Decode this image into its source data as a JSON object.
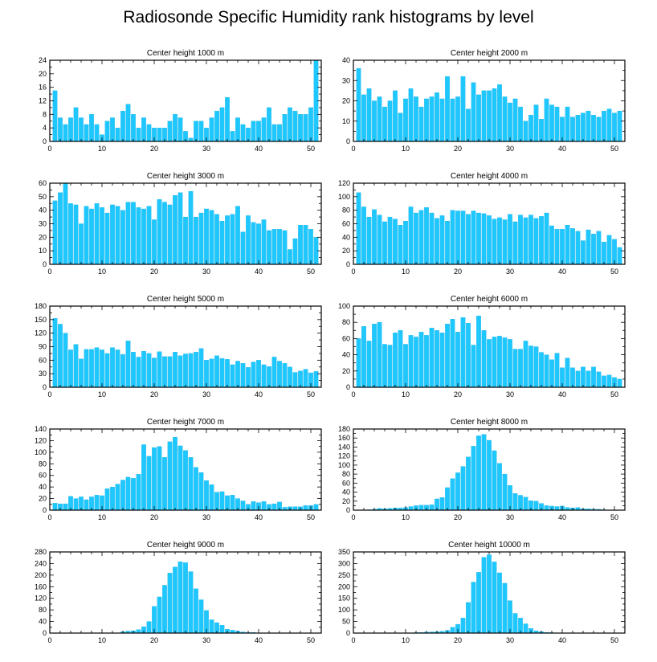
{
  "chart_data": {
    "title": "Radiosonde Specific Humidity rank histograms by level",
    "colors": {
      "bar": "#1ec8ff",
      "bar_stroke": "#0aa8e0",
      "axis": "#000000"
    },
    "panels": [
      {
        "type": "bar",
        "title": "Center height 1000 m",
        "xlim": [
          0,
          52
        ],
        "ylim": [
          0,
          24
        ],
        "xticks": [
          0,
          10,
          20,
          30,
          40,
          50
        ],
        "yticks": [
          0,
          4,
          8,
          12,
          16,
          20,
          24
        ],
        "categories": [
          1,
          2,
          3,
          4,
          5,
          6,
          7,
          8,
          9,
          10,
          11,
          12,
          13,
          14,
          15,
          16,
          17,
          18,
          19,
          20,
          21,
          22,
          23,
          24,
          25,
          26,
          27,
          28,
          29,
          30,
          31,
          32,
          33,
          34,
          35,
          36,
          37,
          38,
          39,
          40,
          41,
          42,
          43,
          44,
          45,
          46,
          47,
          48,
          49,
          50,
          51
        ],
        "values": [
          15,
          7,
          5,
          7,
          10,
          7,
          5,
          8,
          5,
          2,
          6,
          7,
          4,
          9,
          11,
          8,
          4,
          7,
          5,
          4,
          4,
          4,
          6,
          8,
          7,
          3,
          1,
          6,
          6,
          4,
          7,
          9,
          10,
          13,
          3,
          7,
          5,
          4,
          6,
          6,
          7,
          10,
          5,
          5,
          8,
          10,
          9,
          8,
          8,
          10,
          24
        ]
      },
      {
        "type": "bar",
        "title": "Center height 2000 m",
        "xlim": [
          0,
          52
        ],
        "ylim": [
          0,
          40
        ],
        "xticks": [
          0,
          10,
          20,
          30,
          40,
          50
        ],
        "yticks": [
          0,
          10,
          20,
          30,
          40
        ],
        "categories": [
          1,
          2,
          3,
          4,
          5,
          6,
          7,
          8,
          9,
          10,
          11,
          12,
          13,
          14,
          15,
          16,
          17,
          18,
          19,
          20,
          21,
          22,
          23,
          24,
          25,
          26,
          27,
          28,
          29,
          30,
          31,
          32,
          33,
          34,
          35,
          36,
          37,
          38,
          39,
          40,
          41,
          42,
          43,
          44,
          45,
          46,
          47,
          48,
          49,
          50,
          51
        ],
        "values": [
          36,
          23,
          26,
          20,
          22,
          17,
          20,
          25,
          14,
          21,
          26,
          22,
          17,
          21,
          22,
          24,
          21,
          32,
          21,
          22,
          32,
          16,
          29,
          23,
          25,
          25,
          26,
          28,
          22,
          19,
          21,
          17,
          10,
          13,
          18,
          11,
          21,
          18,
          17,
          12,
          17,
          12,
          13,
          14,
          15,
          13,
          12,
          15,
          16,
          14,
          15
        ]
      },
      {
        "type": "bar",
        "title": "Center height 3000 m",
        "xlim": [
          0,
          52
        ],
        "ylim": [
          0,
          60
        ],
        "xticks": [
          0,
          10,
          20,
          30,
          40,
          50
        ],
        "yticks": [
          0,
          10,
          20,
          30,
          40,
          50,
          60
        ],
        "categories": [
          1,
          2,
          3,
          4,
          5,
          6,
          7,
          8,
          9,
          10,
          11,
          12,
          13,
          14,
          15,
          16,
          17,
          18,
          19,
          20,
          21,
          22,
          23,
          24,
          25,
          26,
          27,
          28,
          29,
          30,
          31,
          32,
          33,
          34,
          35,
          36,
          37,
          38,
          39,
          40,
          41,
          42,
          43,
          44,
          45,
          46,
          47,
          48,
          49,
          50,
          51
        ],
        "values": [
          47,
          53,
          60,
          45,
          44,
          30,
          43,
          41,
          45,
          42,
          38,
          44,
          43,
          40,
          46,
          46,
          42,
          41,
          43,
          33,
          48,
          46,
          44,
          51,
          53,
          35,
          54,
          35,
          38,
          41,
          40,
          37,
          32,
          36,
          37,
          43,
          24,
          36,
          31,
          30,
          33,
          25,
          26,
          26,
          25,
          11,
          19,
          29,
          29,
          26,
          20
        ]
      },
      {
        "type": "bar",
        "title": "Center height 4000 m",
        "xlim": [
          0,
          52
        ],
        "ylim": [
          0,
          120
        ],
        "xticks": [
          0,
          10,
          20,
          30,
          40,
          50
        ],
        "yticks": [
          0,
          20,
          40,
          60,
          80,
          100,
          120
        ],
        "categories": [
          1,
          2,
          3,
          4,
          5,
          6,
          7,
          8,
          9,
          10,
          11,
          12,
          13,
          14,
          15,
          16,
          17,
          18,
          19,
          20,
          21,
          22,
          23,
          24,
          25,
          26,
          27,
          28,
          29,
          30,
          31,
          32,
          33,
          34,
          35,
          36,
          37,
          38,
          39,
          40,
          41,
          42,
          43,
          44,
          45,
          46,
          47,
          48,
          49,
          50,
          51
        ],
        "values": [
          106,
          85,
          70,
          81,
          73,
          63,
          70,
          67,
          58,
          64,
          85,
          76,
          80,
          84,
          76,
          68,
          72,
          64,
          80,
          79,
          79,
          74,
          79,
          76,
          75,
          72,
          67,
          69,
          66,
          74,
          63,
          73,
          69,
          73,
          68,
          71,
          76,
          57,
          52,
          52,
          58,
          53,
          49,
          35,
          51,
          45,
          49,
          33,
          43,
          37,
          25
        ]
      },
      {
        "type": "bar",
        "title": "Center height 5000 m",
        "xlim": [
          0,
          52
        ],
        "ylim": [
          0,
          180
        ],
        "xticks": [
          0,
          10,
          20,
          30,
          40,
          50
        ],
        "yticks": [
          0,
          30,
          60,
          90,
          120,
          150,
          180
        ],
        "categories": [
          1,
          2,
          3,
          4,
          5,
          6,
          7,
          8,
          9,
          10,
          11,
          12,
          13,
          14,
          15,
          16,
          17,
          18,
          19,
          20,
          21,
          22,
          23,
          24,
          25,
          26,
          27,
          28,
          29,
          30,
          31,
          32,
          33,
          34,
          35,
          36,
          37,
          38,
          39,
          40,
          41,
          42,
          43,
          44,
          45,
          46,
          47,
          48,
          49,
          50,
          51
        ],
        "values": [
          153,
          140,
          120,
          83,
          95,
          63,
          84,
          84,
          88,
          83,
          75,
          88,
          83,
          73,
          103,
          78,
          67,
          80,
          75,
          65,
          79,
          68,
          68,
          78,
          70,
          74,
          75,
          78,
          86,
          60,
          63,
          70,
          64,
          62,
          50,
          58,
          53,
          44,
          56,
          60,
          50,
          46,
          67,
          58,
          53,
          45,
          33,
          36,
          40,
          32,
          35
        ]
      },
      {
        "type": "bar",
        "title": "Center height 6000 m",
        "xlim": [
          0,
          52
        ],
        "ylim": [
          0,
          100
        ],
        "xticks": [
          0,
          10,
          20,
          30,
          40,
          50
        ],
        "yticks": [
          0,
          20,
          40,
          60,
          80,
          100
        ],
        "categories": [
          1,
          2,
          3,
          4,
          5,
          6,
          7,
          8,
          9,
          10,
          11,
          12,
          13,
          14,
          15,
          16,
          17,
          18,
          19,
          20,
          21,
          22,
          23,
          24,
          25,
          26,
          27,
          28,
          29,
          30,
          31,
          32,
          33,
          34,
          35,
          36,
          37,
          38,
          39,
          40,
          41,
          42,
          43,
          44,
          45,
          46,
          47,
          48,
          49,
          50,
          51
        ],
        "values": [
          60,
          75,
          57,
          78,
          80,
          53,
          52,
          67,
          70,
          53,
          64,
          62,
          68,
          64,
          73,
          70,
          67,
          78,
          84,
          68,
          86,
          79,
          52,
          88,
          70,
          59,
          62,
          63,
          61,
          59,
          47,
          47,
          57,
          51,
          50,
          43,
          40,
          34,
          42,
          24,
          36,
          24,
          20,
          25,
          20,
          25,
          19,
          14,
          15,
          12,
          10
        ]
      },
      {
        "type": "bar",
        "title": "Center height 7000 m",
        "xlim": [
          0,
          52
        ],
        "ylim": [
          0,
          140
        ],
        "xticks": [
          0,
          10,
          20,
          30,
          40,
          50
        ],
        "yticks": [
          0,
          20,
          40,
          60,
          80,
          100,
          120,
          140
        ],
        "categories": [
          1,
          2,
          3,
          4,
          5,
          6,
          7,
          8,
          9,
          10,
          11,
          12,
          13,
          14,
          15,
          16,
          17,
          18,
          19,
          20,
          21,
          22,
          23,
          24,
          25,
          26,
          27,
          28,
          29,
          30,
          31,
          32,
          33,
          34,
          35,
          36,
          37,
          38,
          39,
          40,
          41,
          42,
          43,
          44,
          45,
          46,
          47,
          48,
          49,
          50,
          51
        ],
        "values": [
          12,
          11,
          11,
          24,
          20,
          23,
          18,
          23,
          26,
          25,
          37,
          40,
          45,
          52,
          57,
          55,
          62,
          113,
          93,
          108,
          110,
          91,
          118,
          126,
          111,
          103,
          91,
          74,
          65,
          51,
          44,
          31,
          32,
          25,
          26,
          20,
          16,
          10,
          15,
          13,
          15,
          10,
          11,
          14,
          5,
          6,
          6,
          6,
          8,
          8,
          10
        ]
      },
      {
        "type": "bar",
        "title": "Center height 8000 m",
        "xlim": [
          0,
          52
        ],
        "ylim": [
          0,
          180
        ],
        "xticks": [
          0,
          10,
          20,
          30,
          40,
          50
        ],
        "yticks": [
          0,
          20,
          40,
          60,
          80,
          100,
          120,
          140,
          160,
          180
        ],
        "categories": [
          1,
          2,
          3,
          4,
          5,
          6,
          7,
          8,
          9,
          10,
          11,
          12,
          13,
          14,
          15,
          16,
          17,
          18,
          19,
          20,
          21,
          22,
          23,
          24,
          25,
          26,
          27,
          28,
          29,
          30,
          31,
          32,
          33,
          34,
          35,
          36,
          37,
          38,
          39,
          40,
          41,
          42,
          43,
          44,
          45,
          46,
          47,
          48,
          49,
          50,
          51
        ],
        "values": [
          0,
          0,
          1,
          2,
          4,
          3,
          4,
          5,
          5,
          6,
          8,
          10,
          11,
          11,
          12,
          25,
          28,
          50,
          70,
          83,
          97,
          118,
          142,
          165,
          168,
          155,
          132,
          104,
          80,
          55,
          37,
          33,
          29,
          21,
          20,
          15,
          10,
          9,
          8,
          9,
          6,
          5,
          6,
          3,
          3,
          2,
          2,
          1,
          0,
          0,
          0
        ]
      },
      {
        "type": "bar",
        "title": "Center height 9000 m",
        "xlim": [
          0,
          52
        ],
        "ylim": [
          0,
          280
        ],
        "xticks": [
          0,
          10,
          20,
          30,
          40,
          50
        ],
        "yticks": [
          0,
          40,
          80,
          120,
          160,
          200,
          240,
          280
        ],
        "categories": [
          1,
          2,
          3,
          4,
          5,
          6,
          7,
          8,
          9,
          10,
          11,
          12,
          13,
          14,
          15,
          16,
          17,
          18,
          19,
          20,
          21,
          22,
          23,
          24,
          25,
          26,
          27,
          28,
          29,
          30,
          31,
          32,
          33,
          34,
          35,
          36,
          37,
          38,
          39,
          40,
          41,
          42,
          43,
          44,
          45,
          46,
          47,
          48,
          49,
          50,
          51
        ],
        "values": [
          0,
          0,
          0,
          0,
          0,
          0,
          0,
          0,
          0,
          0,
          0,
          0,
          0,
          5,
          7,
          8,
          12,
          22,
          40,
          92,
          125,
          165,
          207,
          228,
          246,
          243,
          212,
          153,
          115,
          78,
          46,
          36,
          27,
          13,
          10,
          7,
          4,
          2,
          2,
          1,
          0,
          0,
          0,
          0,
          0,
          0,
          0,
          0,
          0,
          0,
          0
        ]
      },
      {
        "type": "bar",
        "title": "Center height 10000 m",
        "xlim": [
          0,
          52
        ],
        "ylim": [
          0,
          350
        ],
        "xticks": [
          0,
          10,
          20,
          30,
          40,
          50
        ],
        "yticks": [
          0,
          50,
          100,
          150,
          200,
          250,
          300,
          350
        ],
        "categories": [
          1,
          2,
          3,
          4,
          5,
          6,
          7,
          8,
          9,
          10,
          11,
          12,
          13,
          14,
          15,
          16,
          17,
          18,
          19,
          20,
          21,
          22,
          23,
          24,
          25,
          26,
          27,
          28,
          29,
          30,
          31,
          32,
          33,
          34,
          35,
          36,
          37,
          38,
          39,
          40,
          41,
          42,
          43,
          44,
          45,
          46,
          47,
          48,
          49,
          50,
          51
        ],
        "values": [
          0,
          0,
          0,
          0,
          0,
          0,
          0,
          0,
          0,
          0,
          0,
          2,
          3,
          4,
          5,
          6,
          8,
          12,
          25,
          38,
          65,
          132,
          220,
          262,
          327,
          338,
          307,
          260,
          215,
          140,
          85,
          65,
          40,
          20,
          10,
          6,
          3,
          2,
          1,
          0,
          0,
          0,
          0,
          0,
          0,
          0,
          0,
          0,
          0,
          0,
          0
        ]
      }
    ]
  }
}
